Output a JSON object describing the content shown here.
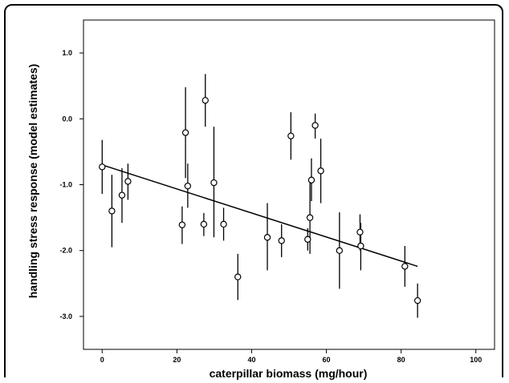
{
  "chart_data": {
    "type": "scatter",
    "title": "",
    "xlabel": "caterpillar biomass (mg/hour)",
    "ylabel": "handling stress response (model estimates)",
    "xlim": [
      -5,
      105
    ],
    "ylim": [
      -3.5,
      1.5
    ],
    "x_ticks": [
      0,
      20,
      40,
      60,
      80,
      100
    ],
    "x_tick_labels": [
      "0",
      "20",
      "40",
      "60",
      "80",
      "100"
    ],
    "y_ticks": [
      1.0,
      0.0,
      -1.0,
      -2.0,
      -3.0
    ],
    "y_tick_labels": [
      "1.0",
      "0.0",
      "-1.0",
      "-2.0",
      "-3.0"
    ],
    "grid": false,
    "points": [
      {
        "x": 0.0,
        "y": -0.73,
        "lo": -1.14,
        "hi": -0.32
      },
      {
        "x": 2.6,
        "y": -1.4,
        "lo": -1.95,
        "hi": -0.85
      },
      {
        "x": 5.3,
        "y": -1.16,
        "lo": -1.58,
        "hi": -0.75
      },
      {
        "x": 6.9,
        "y": -0.95,
        "lo": -1.23,
        "hi": -0.68
      },
      {
        "x": 21.4,
        "y": -1.61,
        "lo": -1.9,
        "hi": -1.33
      },
      {
        "x": 22.3,
        "y": -0.21,
        "lo": -0.9,
        "hi": 0.48
      },
      {
        "x": 22.9,
        "y": -1.02,
        "lo": -1.35,
        "hi": -0.68
      },
      {
        "x": 27.2,
        "y": -1.6,
        "lo": -1.78,
        "hi": -1.43
      },
      {
        "x": 27.6,
        "y": 0.28,
        "lo": -0.12,
        "hi": 0.68
      },
      {
        "x": 29.9,
        "y": -0.97,
        "lo": -1.8,
        "hi": -0.12
      },
      {
        "x": 32.5,
        "y": -1.6,
        "lo": -1.85,
        "hi": -1.35
      },
      {
        "x": 36.3,
        "y": -2.4,
        "lo": -2.75,
        "hi": -2.05
      },
      {
        "x": 44.2,
        "y": -1.8,
        "lo": -2.3,
        "hi": -1.28
      },
      {
        "x": 48.0,
        "y": -1.85,
        "lo": -2.1,
        "hi": -1.6
      },
      {
        "x": 50.5,
        "y": -0.26,
        "lo": -0.62,
        "hi": 0.1
      },
      {
        "x": 55.0,
        "y": -1.83,
        "lo": -2.0,
        "hi": -1.66
      },
      {
        "x": 55.6,
        "y": -1.5,
        "lo": -2.05,
        "hi": -0.95
      },
      {
        "x": 56.0,
        "y": -0.93,
        "lo": -1.25,
        "hi": -0.6
      },
      {
        "x": 57.0,
        "y": -0.1,
        "lo": -0.3,
        "hi": 0.08
      },
      {
        "x": 58.5,
        "y": -0.79,
        "lo": -1.28,
        "hi": -0.3
      },
      {
        "x": 63.5,
        "y": -2.0,
        "lo": -2.58,
        "hi": -1.42
      },
      {
        "x": 69.0,
        "y": -1.72,
        "lo": -2.0,
        "hi": -1.45
      },
      {
        "x": 69.2,
        "y": -1.93,
        "lo": -2.3,
        "hi": -1.58
      },
      {
        "x": 81.0,
        "y": -2.24,
        "lo": -2.55,
        "hi": -1.93
      },
      {
        "x": 84.4,
        "y": -2.76,
        "lo": -3.02,
        "hi": -2.5
      }
    ],
    "trend_line": {
      "x": [
        0,
        84.4
      ],
      "y": [
        -0.7,
        -2.24
      ]
    },
    "marker": "open-circle",
    "colors": {
      "marker": "#000000",
      "line": "#000000",
      "background": "#ffffff"
    }
  }
}
